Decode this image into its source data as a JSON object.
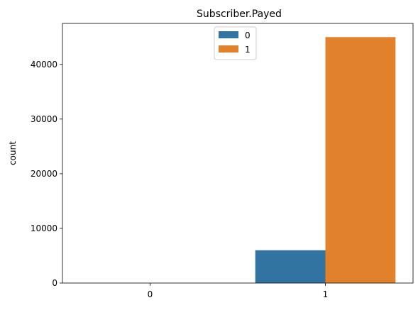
{
  "chart_data": {
    "type": "bar",
    "title": "Subscriber.Payed",
    "xlabel": "",
    "ylabel": "count",
    "categories": [
      "0",
      "1"
    ],
    "series": [
      {
        "name": "0",
        "color": "#3274a1",
        "values": [
          0,
          6000
        ]
      },
      {
        "name": "1",
        "color": "#e1812c",
        "values": [
          0,
          45000
        ]
      }
    ],
    "ylim": [
      0,
      47500
    ],
    "yticks": [
      0,
      10000,
      20000,
      30000,
      40000
    ],
    "grid": false,
    "legend": {
      "placement": "top-center",
      "entries": [
        "0",
        "1"
      ]
    }
  }
}
